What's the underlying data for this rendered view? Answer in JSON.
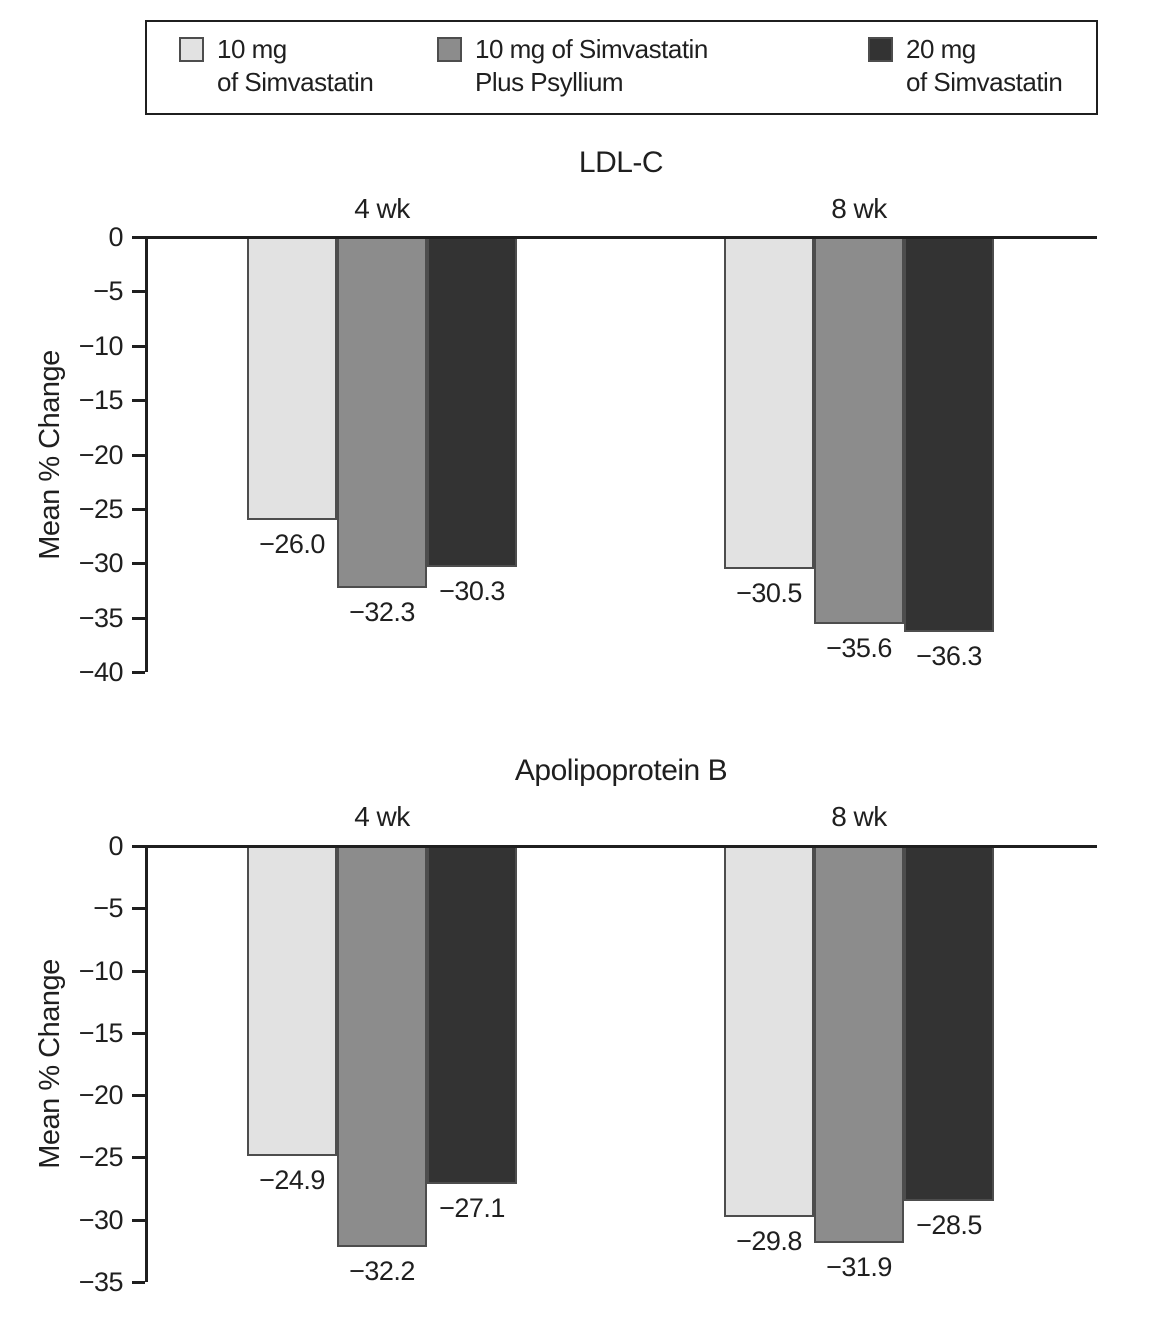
{
  "colors": {
    "series": [
      "#e2e2e2",
      "#8c8c8c",
      "#333333"
    ],
    "bar_border": "#4d4d4d",
    "axis": "#1f1f1f",
    "text": "#1f1f1f",
    "legend_border": "#1f1f1f",
    "background": "#ffffff"
  },
  "legend": {
    "items": [
      {
        "lines": [
          "10 mg",
          "of Simvastatin"
        ],
        "swatch": "#e2e2e2"
      },
      {
        "lines": [
          "10 mg of Simvastatin",
          "Plus Psyllium"
        ],
        "swatch": "#8c8c8c"
      },
      {
        "lines": [
          "20 mg",
          "of Simvastatin"
        ],
        "swatch": "#333333"
      }
    ]
  },
  "chart_data": [
    {
      "type": "bar",
      "title": "LDL-C",
      "ylabel": "Mean % Change",
      "categories": [
        "4 wk",
        "8 wk"
      ],
      "series": [
        {
          "name": "10 mg of Simvastatin",
          "values": [
            -26.0,
            -30.5
          ]
        },
        {
          "name": "10 mg of Simvastatin Plus Psyllium",
          "values": [
            -32.3,
            -35.6
          ]
        },
        {
          "name": "20 mg of Simvastatin",
          "values": [
            -30.3,
            -36.3
          ]
        }
      ],
      "value_labels": [
        [
          "−26.0",
          "−30.5"
        ],
        [
          "−32.3",
          "−35.6"
        ],
        [
          "−30.3",
          "−36.3"
        ]
      ],
      "ylim": [
        -40,
        0
      ],
      "yticks": [
        0,
        -5,
        -10,
        -15,
        -20,
        -25,
        -30,
        -35,
        -40
      ],
      "ytick_labels": [
        "0",
        "−5",
        "−10",
        "−15",
        "−20",
        "−25",
        "−30",
        "−35",
        "−40"
      ],
      "grid": false,
      "legend_position": "top-shared"
    },
    {
      "type": "bar",
      "title": "Apolipoprotein B",
      "ylabel": "Mean % Change",
      "categories": [
        "4 wk",
        "8 wk"
      ],
      "series": [
        {
          "name": "10 mg of Simvastatin",
          "values": [
            -24.9,
            -29.8
          ]
        },
        {
          "name": "10 mg of Simvastatin Plus Psyllium",
          "values": [
            -32.2,
            -31.9
          ]
        },
        {
          "name": "20 mg of Simvastatin",
          "values": [
            -27.1,
            -28.5
          ]
        }
      ],
      "value_labels": [
        [
          "−24.9",
          "−29.8"
        ],
        [
          "−32.2",
          "−31.9"
        ],
        [
          "−27.1",
          "−28.5"
        ]
      ],
      "ylim": [
        -35,
        0
      ],
      "yticks": [
        0,
        -5,
        -10,
        -15,
        -20,
        -25,
        -30,
        -35
      ],
      "ytick_labels": [
        "0",
        "−5",
        "−10",
        "−15",
        "−20",
        "−25",
        "−30",
        "−35"
      ],
      "grid": false,
      "legend_position": "top-shared"
    }
  ]
}
